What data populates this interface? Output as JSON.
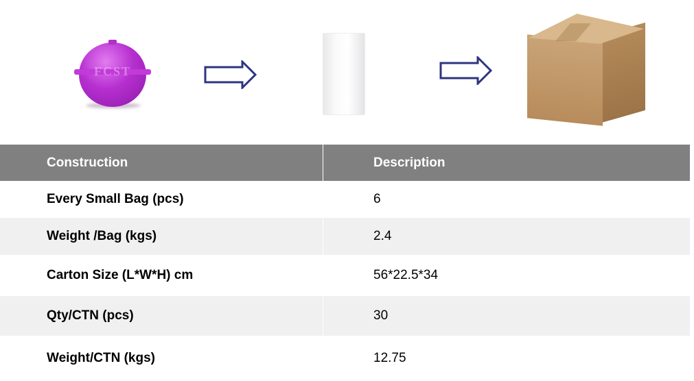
{
  "images": {
    "logo_text": "FCST",
    "arrow_color": "#2e3480"
  },
  "table": {
    "headers": [
      "Construction",
      "Description"
    ],
    "rows": [
      {
        "label": "Every Small Bag (pcs)",
        "value": "6"
      },
      {
        "label": "Weight /Bag (kgs)",
        "value": "2.4"
      },
      {
        "label": "Carton Size (L*W*H) cm",
        "value": "56*22.5*34"
      },
      {
        "label": "Qty/CTN (pcs)",
        "value": "30"
      },
      {
        "label": "Weight/CTN (kgs)",
        "value": "12.75"
      }
    ]
  }
}
